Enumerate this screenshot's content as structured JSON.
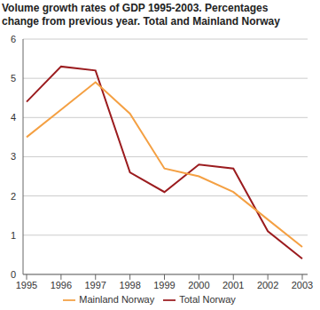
{
  "chart_data": {
    "type": "line",
    "title": "Volume growth rates of GDP 1995-2003. Percentages change from previous year. Total and Mainland Norway",
    "categories": [
      "1995",
      "1996",
      "1997",
      "1998",
      "1999",
      "2000",
      "2001",
      "2002",
      "2003"
    ],
    "series": [
      {
        "name": "Total Norway",
        "color": "#9b1c1f",
        "values": [
          4.4,
          5.3,
          5.2,
          2.6,
          2.1,
          2.8,
          2.7,
          1.1,
          0.4
        ]
      },
      {
        "name": "Mainland Norway",
        "color": "#f4a043",
        "values": [
          3.5,
          4.2,
          4.9,
          4.1,
          2.7,
          2.5,
          2.1,
          1.4,
          0.7
        ]
      }
    ],
    "ylim": [
      0,
      6
    ],
    "yticks": [
      0,
      1,
      2,
      3,
      4,
      5,
      6
    ],
    "grid": true,
    "legend": "bottom"
  }
}
